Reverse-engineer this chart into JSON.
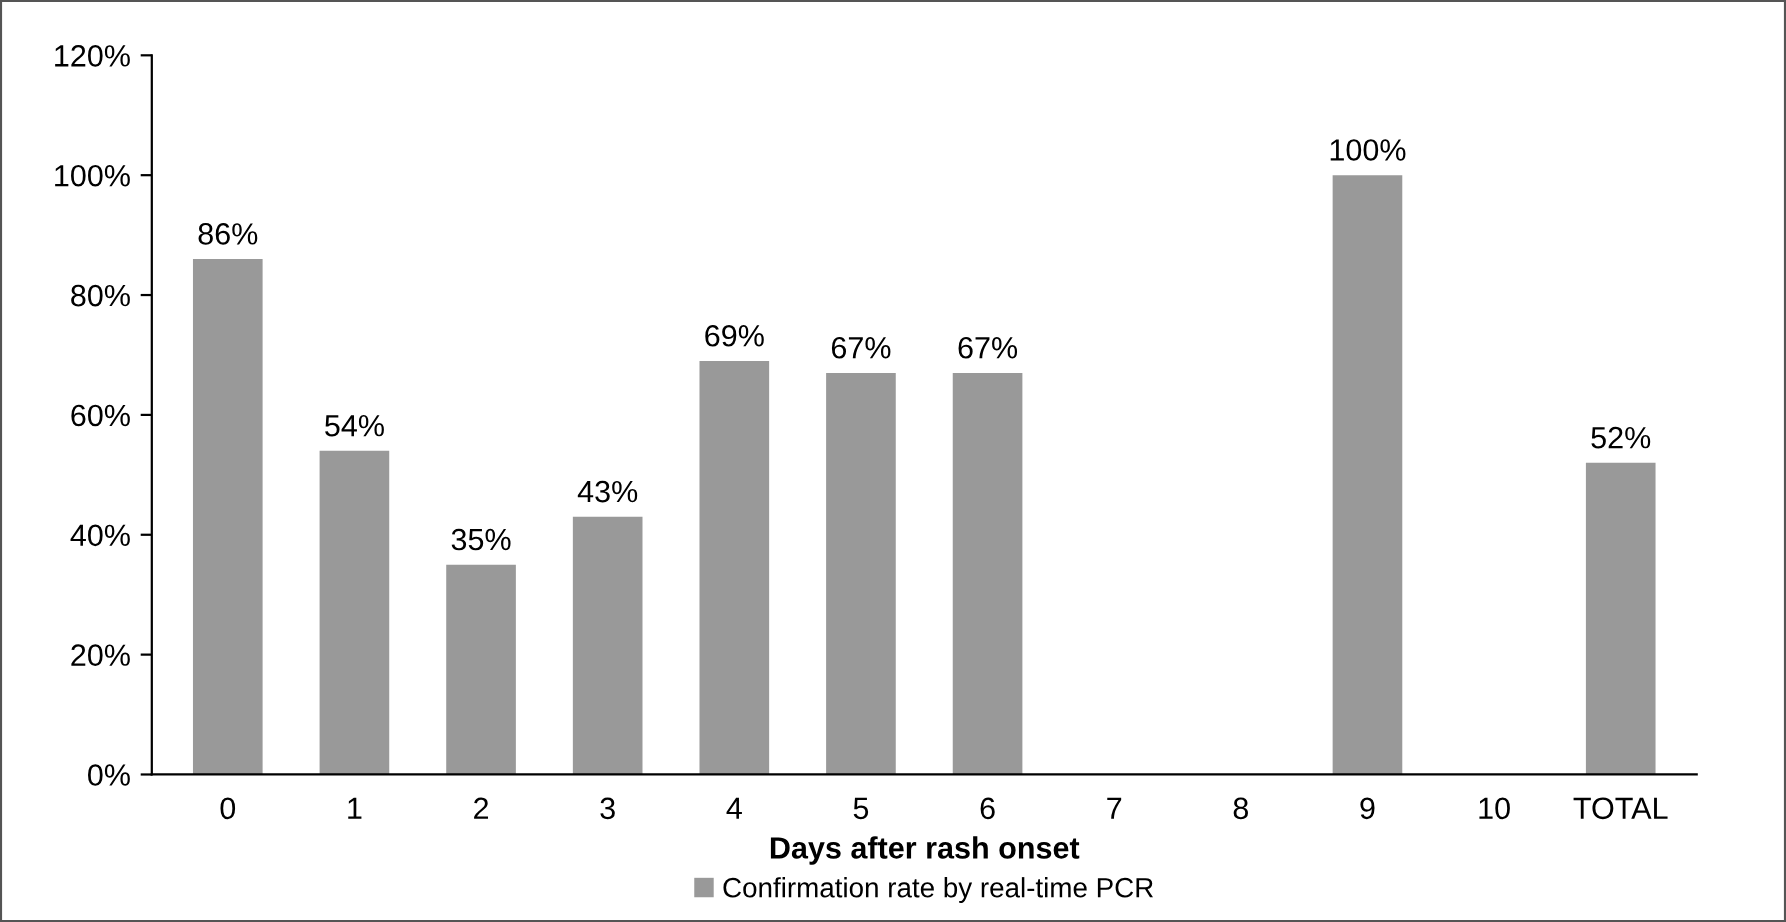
{
  "chart_data": {
    "type": "bar",
    "xlabel": "Days after rash onset",
    "categories": [
      "0",
      "1",
      "2",
      "3",
      "4",
      "5",
      "6",
      "7",
      "8",
      "9",
      "10",
      "TOTAL"
    ],
    "series": [
      {
        "name": "Confirmation rate by real-time PCR",
        "color": "#999999",
        "values": [
          86,
          54,
          35,
          43,
          69,
          67,
          67,
          null,
          null,
          100,
          null,
          52
        ],
        "value_labels": [
          "86%",
          "54%",
          "35%",
          "43%",
          "69%",
          "67%",
          "67%",
          null,
          null,
          "100%",
          null,
          "52%"
        ]
      }
    ],
    "ylim": [
      0,
      120
    ],
    "yticks": [
      {
        "value": 0,
        "label": "0%"
      },
      {
        "value": 20,
        "label": "20%"
      },
      {
        "value": 40,
        "label": "40%"
      },
      {
        "value": 60,
        "label": "60%"
      },
      {
        "value": 80,
        "label": "80%"
      },
      {
        "value": 100,
        "label": "100%"
      },
      {
        "value": 120,
        "label": "120%"
      }
    ],
    "grid": false,
    "legend": "bottom"
  }
}
